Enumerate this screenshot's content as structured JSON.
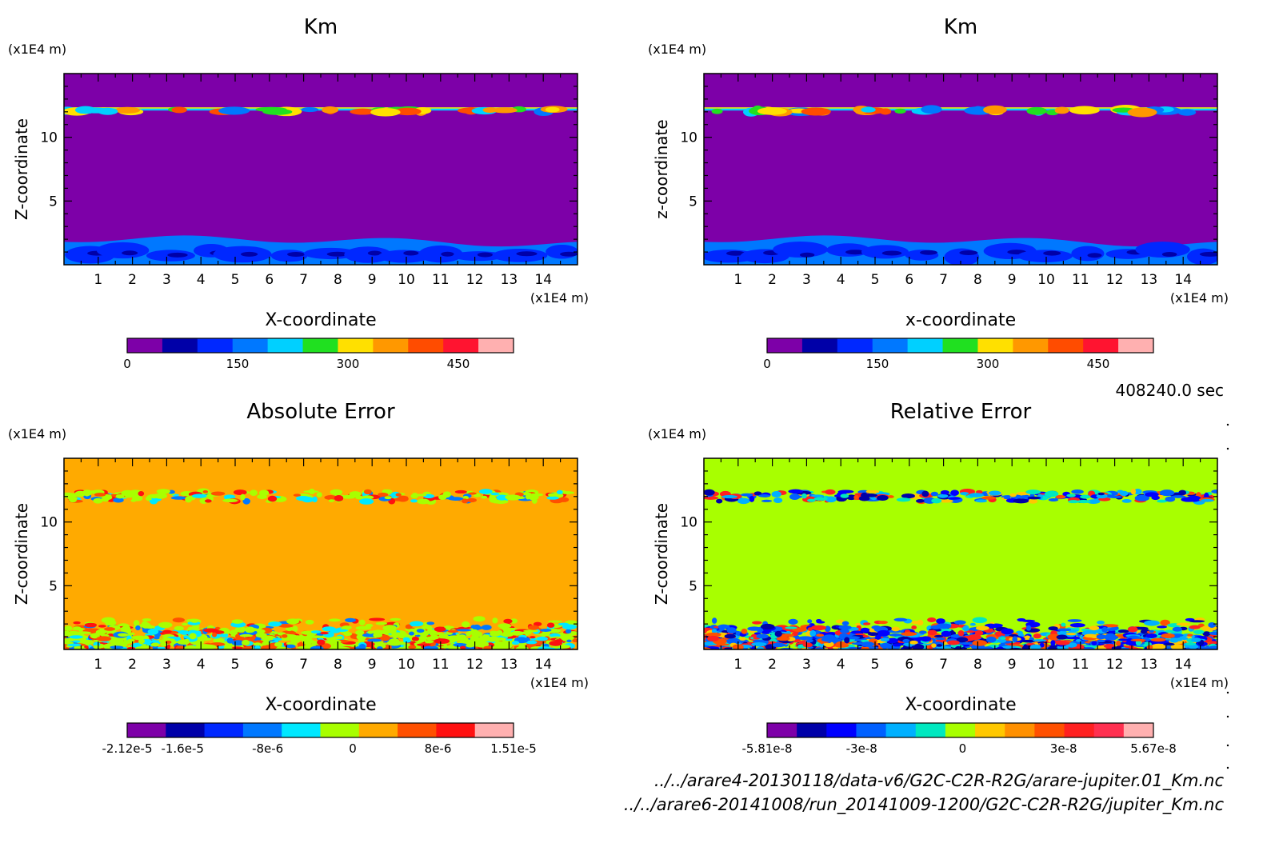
{
  "time_label": "408240.0 sec",
  "files": [
    "../../arare4-20130118/data-v6/G2C-C2R-R2G/arare-jupiter.01_Km.nc",
    "../../arare6-20141008/run_20141009-1200/G2C-C2R-R2G/jupiter_Km.nc"
  ],
  "chart_data": [
    {
      "type": "heatmap",
      "title": "Km",
      "xlabel": "X-coordinate",
      "ylabel": "Z-coordinate",
      "x_unit": "(x1E4 m)",
      "y_unit": "(x1E4 m)",
      "xlim": [
        0,
        15
      ],
      "ylim": [
        0,
        15
      ],
      "xticks": [
        1,
        2,
        3,
        4,
        5,
        6,
        7,
        8,
        9,
        10,
        11,
        12,
        13,
        14
      ],
      "yticks": [
        5,
        10
      ],
      "colorbar": {
        "colors": [
          "#7d00a8",
          "#0000a8",
          "#0028ff",
          "#0078ff",
          "#00d0ff",
          "#20e020",
          "#ffe000",
          "#ff9800",
          "#ff4c00",
          "#ff1430",
          "#ffb0b0"
        ],
        "ticks": [
          {
            "v": 0,
            "t": "0"
          },
          {
            "v": 150,
            "t": "150"
          },
          {
            "v": 300,
            "t": "300"
          },
          {
            "v": 450,
            "t": "450"
          }
        ],
        "range": [
          0,
          525
        ]
      },
      "background": "#7d00a8",
      "style": "km"
    },
    {
      "type": "heatmap",
      "title": "Km",
      "xlabel": "x-coordinate",
      "ylabel": "z-coordinate",
      "x_unit": "(x1E4 m)",
      "y_unit": "(x1E4 m)",
      "xlim": [
        0,
        15
      ],
      "ylim": [
        0,
        15
      ],
      "xticks": [
        1,
        2,
        3,
        4,
        5,
        6,
        7,
        8,
        9,
        10,
        11,
        12,
        13,
        14
      ],
      "yticks": [
        5,
        10
      ],
      "colorbar": {
        "colors": [
          "#7d00a8",
          "#0000a8",
          "#0028ff",
          "#0078ff",
          "#00d0ff",
          "#20e020",
          "#ffe000",
          "#ff9800",
          "#ff4c00",
          "#ff1430",
          "#ffb0b0"
        ],
        "ticks": [
          {
            "v": 0,
            "t": "0"
          },
          {
            "v": 150,
            "t": "150"
          },
          {
            "v": 300,
            "t": "300"
          },
          {
            "v": 450,
            "t": "450"
          }
        ],
        "range": [
          0,
          525
        ]
      },
      "background": "#7d00a8",
      "style": "km"
    },
    {
      "type": "heatmap",
      "title": "Absolute Error",
      "xlabel": "X-coordinate",
      "ylabel": "Z-coordinate",
      "x_unit": "(x1E4 m)",
      "y_unit": "(x1E4 m)",
      "xlim": [
        0,
        15
      ],
      "ylim": [
        0,
        15
      ],
      "xticks": [
        1,
        2,
        3,
        4,
        5,
        6,
        7,
        8,
        9,
        10,
        11,
        12,
        13,
        14
      ],
      "yticks": [
        5,
        10
      ],
      "colorbar": {
        "colors": [
          "#7d00a8",
          "#0000a8",
          "#0028ff",
          "#0078ff",
          "#00e8ff",
          "#a8ff00",
          "#ffaa00",
          "#ff5000",
          "#ff1010",
          "#ffb0b0"
        ],
        "ticks": [
          {
            "v": -2.12e-05,
            "t": "-2.12e-5"
          },
          {
            "v": -1.6e-05,
            "t": "-1.6e-5"
          },
          {
            "v": -8e-06,
            "t": "-8e-6"
          },
          {
            "v": 0,
            "t": "0"
          },
          {
            "v": 8e-06,
            "t": "8e-6"
          },
          {
            "v": 1.51e-05,
            "t": "1.51e-5"
          }
        ],
        "range": [
          -2.12e-05,
          1.51e-05
        ]
      },
      "background": "#ffaa00",
      "style": "abs"
    },
    {
      "type": "heatmap",
      "title": "Relative Error",
      "xlabel": "X-coordinate",
      "ylabel": "Z-coordinate",
      "x_unit": "(x1E4 m)",
      "y_unit": "(x1E4 m)",
      "xlim": [
        0,
        15
      ],
      "ylim": [
        0,
        15
      ],
      "xticks": [
        1,
        2,
        3,
        4,
        5,
        6,
        7,
        8,
        9,
        10,
        11,
        12,
        13,
        14
      ],
      "yticks": [
        5,
        10
      ],
      "colorbar": {
        "colors": [
          "#7d00a8",
          "#0000a8",
          "#0000ff",
          "#0060ff",
          "#00b0ff",
          "#00e8c0",
          "#a8ff00",
          "#ffc800",
          "#ff9000",
          "#ff5000",
          "#ff2020",
          "#ff3050",
          "#ffb0b0"
        ],
        "ticks": [
          {
            "v": -5.81e-08,
            "t": "-5.81e-8"
          },
          {
            "v": -3e-08,
            "t": "-3e-8"
          },
          {
            "v": 0,
            "t": "0"
          },
          {
            "v": 3e-08,
            "t": "3e-8"
          },
          {
            "v": 5.67e-08,
            "t": "5.67e-8"
          }
        ],
        "range": [
          -5.81e-08,
          5.67e-08
        ]
      },
      "background": "#a8ff00",
      "style": "rel"
    }
  ]
}
